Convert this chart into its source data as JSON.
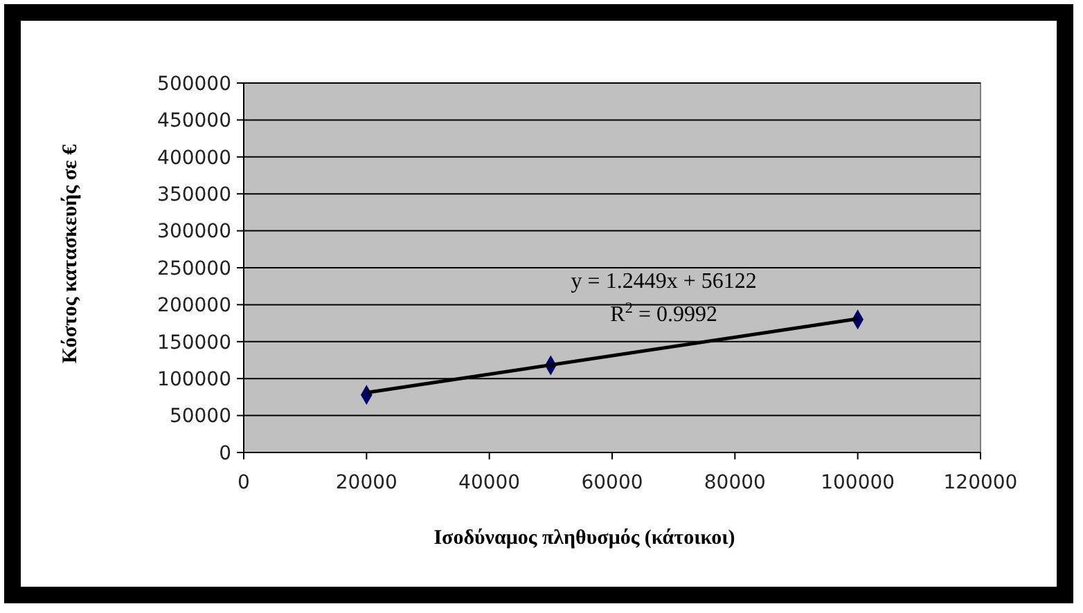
{
  "chart_data": {
    "type": "scatter",
    "xlabel": "Ισοδύναμος πληθυσμός (κάτοικοι)",
    "ylabel": "Κόστος κατασκευής σε €",
    "xlim": [
      0,
      120000
    ],
    "xticks": [
      0,
      20000,
      40000,
      60000,
      80000,
      100000,
      120000
    ],
    "ylim": [
      0,
      500000
    ],
    "yticks": [
      0,
      50000,
      100000,
      150000,
      200000,
      250000,
      300000,
      350000,
      400000,
      450000,
      500000
    ],
    "grid": "y",
    "marker": "diamond",
    "series": [
      {
        "color": "#000066",
        "x": [
          20000,
          50000,
          100000
        ],
        "values": [
          78000,
          118000,
          180000
        ]
      },
      {
        "type": "line",
        "color": "#000000",
        "x": [
          20000,
          100000
        ],
        "values": [
          81000,
          181000
        ],
        "marker": "none"
      }
    ],
    "annotations": [
      "y = 1.2449x + 56122",
      "R$^{2}$ = 0.9992"
    ]
  }
}
